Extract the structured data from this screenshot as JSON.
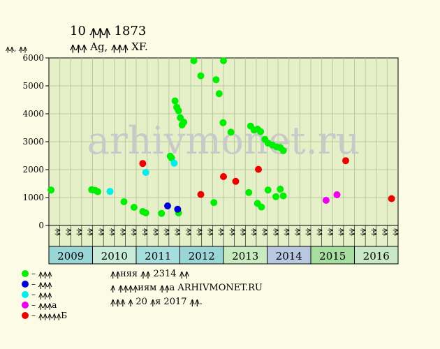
{
  "header": {
    "title": "10 ꙟꙟꙟ 1873",
    "subtitle": "ꙟꙟꙟ Ag, ꙟꙟꙟ XF.",
    "ylabel": "ꙟꙟ, ꙟꙟ"
  },
  "watermark": "arhivmonet.ru",
  "colors": {
    "background": "#fbfbe6",
    "plot_bg": "#e6f0c8",
    "grid": "#b8c8a0",
    "green": "#00ee00",
    "blue": "#0000dd",
    "cyan": "#00eeee",
    "magenta": "#ee00ee",
    "red": "#ee0000"
  },
  "legend": [
    {
      "label": "– ꙟꙟꙟ",
      "color": "#00ee00"
    },
    {
      "label": "– ꙟꙟꙟ",
      "color": "#0000dd"
    },
    {
      "label": "– ꙟꙟꙟ",
      "color": "#00eeee"
    },
    {
      "label": "– ꙟꙟꙟа",
      "color": "#ee00ee"
    },
    {
      "label": "– ꙟꙟꙟꙟꙟБ",
      "color": "#ee0000"
    }
  ],
  "notes": [
    "ꙟꙟняя ꙟꙟ 2314 ꙟꙟ",
    "ꙟ ꙟꙟꙟꙟиям ꙟꙟа ARHIVMONET.RU",
    "ꙟꙟꙟ ꙟ 20 ꙟя 2017 ꙟꙟ."
  ],
  "chart_data": {
    "type": "scatter",
    "ylim": [
      0,
      6000
    ],
    "yticks": [
      0,
      1000,
      2000,
      3000,
      4000,
      5000,
      6000
    ],
    "grid": true,
    "xlim": [
      2009,
      2017
    ],
    "quarter_labels": [
      "ꙟꙟ",
      "ꙟꙟ",
      "ꙟꙟ",
      "ꙟꙟ"
    ],
    "years": [
      {
        "label": "2009",
        "start": 2009,
        "end": 2010,
        "color": "#9ad6d6"
      },
      {
        "label": "2010",
        "start": 2010,
        "end": 2011,
        "color": "#c8ecd8"
      },
      {
        "label": "2011",
        "start": 2011,
        "end": 2012,
        "color": "#a6dede"
      },
      {
        "label": "2012",
        "start": 2012,
        "end": 2013,
        "color": "#9ad6d6"
      },
      {
        "label": "2013",
        "start": 2013,
        "end": 2014,
        "color": "#c8ecc0"
      },
      {
        "label": "2014",
        "start": 2014,
        "end": 2015,
        "color": "#b8c8e0"
      },
      {
        "label": "2015",
        "start": 2015,
        "end": 2016,
        "color": "#a6dea0"
      },
      {
        "label": "2016",
        "start": 2016,
        "end": 2017,
        "color": "#c8e8c8"
      }
    ],
    "series": [
      {
        "color": "#00ee00",
        "points": [
          [
            2009.05,
            1270
          ],
          [
            2009.98,
            1280
          ],
          [
            2010.06,
            1260
          ],
          [
            2010.12,
            1210
          ],
          [
            2010.72,
            850
          ],
          [
            2010.95,
            650
          ],
          [
            2011.15,
            500
          ],
          [
            2011.22,
            450
          ],
          [
            2011.58,
            430
          ],
          [
            2011.78,
            2480
          ],
          [
            2011.81,
            2420
          ],
          [
            2011.89,
            4460
          ],
          [
            2011.93,
            4230
          ],
          [
            2011.97,
            4110
          ],
          [
            2012.01,
            3860
          ],
          [
            2012.05,
            3600
          ],
          [
            2012.09,
            3700
          ],
          [
            2011.97,
            450
          ],
          [
            2012.32,
            5900
          ],
          [
            2012.48,
            5360
          ],
          [
            2012.78,
            820
          ],
          [
            2012.83,
            5220
          ],
          [
            2012.9,
            4720
          ],
          [
            2013.0,
            5900
          ],
          [
            2012.99,
            3680
          ],
          [
            2013.17,
            3340
          ],
          [
            2013.58,
            1180
          ],
          [
            2013.62,
            3560
          ],
          [
            2013.7,
            3420
          ],
          [
            2013.78,
            3450
          ],
          [
            2013.85,
            3360
          ],
          [
            2013.78,
            790
          ],
          [
            2013.87,
            660
          ],
          [
            2013.95,
            3080
          ],
          [
            2014.02,
            2950
          ],
          [
            2014.12,
            2880
          ],
          [
            2014.22,
            2810
          ],
          [
            2014.3,
            2790
          ],
          [
            2014.37,
            2680
          ],
          [
            2014.02,
            1270
          ],
          [
            2014.2,
            1030
          ],
          [
            2014.3,
            1300
          ],
          [
            2014.37,
            1060
          ]
        ]
      },
      {
        "color": "#0000dd",
        "points": [
          [
            2011.72,
            700
          ],
          [
            2011.95,
            580
          ]
        ]
      },
      {
        "color": "#00eeee",
        "points": [
          [
            2010.4,
            1220
          ],
          [
            2011.22,
            1900
          ],
          [
            2011.87,
            2230
          ]
        ]
      },
      {
        "color": "#ee00ee",
        "points": [
          [
            2015.35,
            900
          ],
          [
            2015.6,
            1100
          ]
        ]
      },
      {
        "color": "#ee0000",
        "points": [
          [
            2011.15,
            2220
          ],
          [
            2012.48,
            1110
          ],
          [
            2013.0,
            1750
          ],
          [
            2013.28,
            1580
          ],
          [
            2013.8,
            2010
          ],
          [
            2015.8,
            2320
          ],
          [
            2016.85,
            960
          ]
        ]
      }
    ]
  }
}
